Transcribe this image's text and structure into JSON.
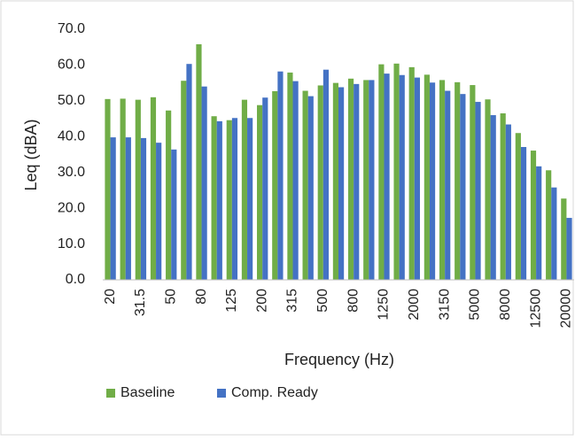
{
  "chart_data": {
    "type": "bar",
    "x_label": "Frequency (Hz)",
    "y_label": "Leq (dBA)",
    "categories": [
      "20",
      null,
      "31.5",
      null,
      "50",
      null,
      "80",
      null,
      "125",
      null,
      "200",
      null,
      "315",
      null,
      "500",
      null,
      "800",
      null,
      "1250",
      null,
      "2000",
      null,
      "3150",
      null,
      "5000",
      null,
      "8000",
      null,
      "12500",
      null,
      "20000"
    ],
    "series": [
      {
        "name": "Baseline",
        "color": "#70ad47",
        "values": [
          50.5,
          50.6,
          50.3,
          51.0,
          47.3,
          55.6,
          65.8,
          45.7,
          44.6,
          50.3,
          48.8,
          52.7,
          57.9,
          52.8,
          54.3,
          55.0,
          56.2,
          55.8,
          60.2,
          60.4,
          59.4,
          57.3,
          55.8,
          55.2,
          54.4,
          50.4,
          46.5,
          41.0,
          36.1,
          30.6,
          22.7
        ]
      },
      {
        "name": "Comp. Ready",
        "color": "#4472c4",
        "values": [
          39.8,
          39.8,
          39.6,
          38.3,
          36.4,
          60.3,
          54.0,
          44.3,
          45.2,
          45.2,
          50.9,
          58.2,
          55.5,
          51.3,
          58.7,
          53.8,
          54.7,
          55.8,
          57.6,
          57.2,
          56.5,
          55.1,
          52.8,
          51.9,
          49.7,
          46.0,
          43.4,
          37.1,
          31.7,
          25.8,
          17.3
        ]
      }
    ],
    "ylim": [
      0,
      70
    ],
    "yticks": [
      {
        "value": 0,
        "label": "0.0"
      },
      {
        "value": 10,
        "label": "10.0"
      },
      {
        "value": 20,
        "label": "20.0"
      },
      {
        "value": 30,
        "label": "30.0"
      },
      {
        "value": 40,
        "label": "40.0"
      },
      {
        "value": 50,
        "label": "50.0"
      },
      {
        "value": 60,
        "label": "60.0"
      },
      {
        "value": 70,
        "label": "70.0"
      }
    ],
    "grid": false,
    "legend": "bottom-left"
  }
}
